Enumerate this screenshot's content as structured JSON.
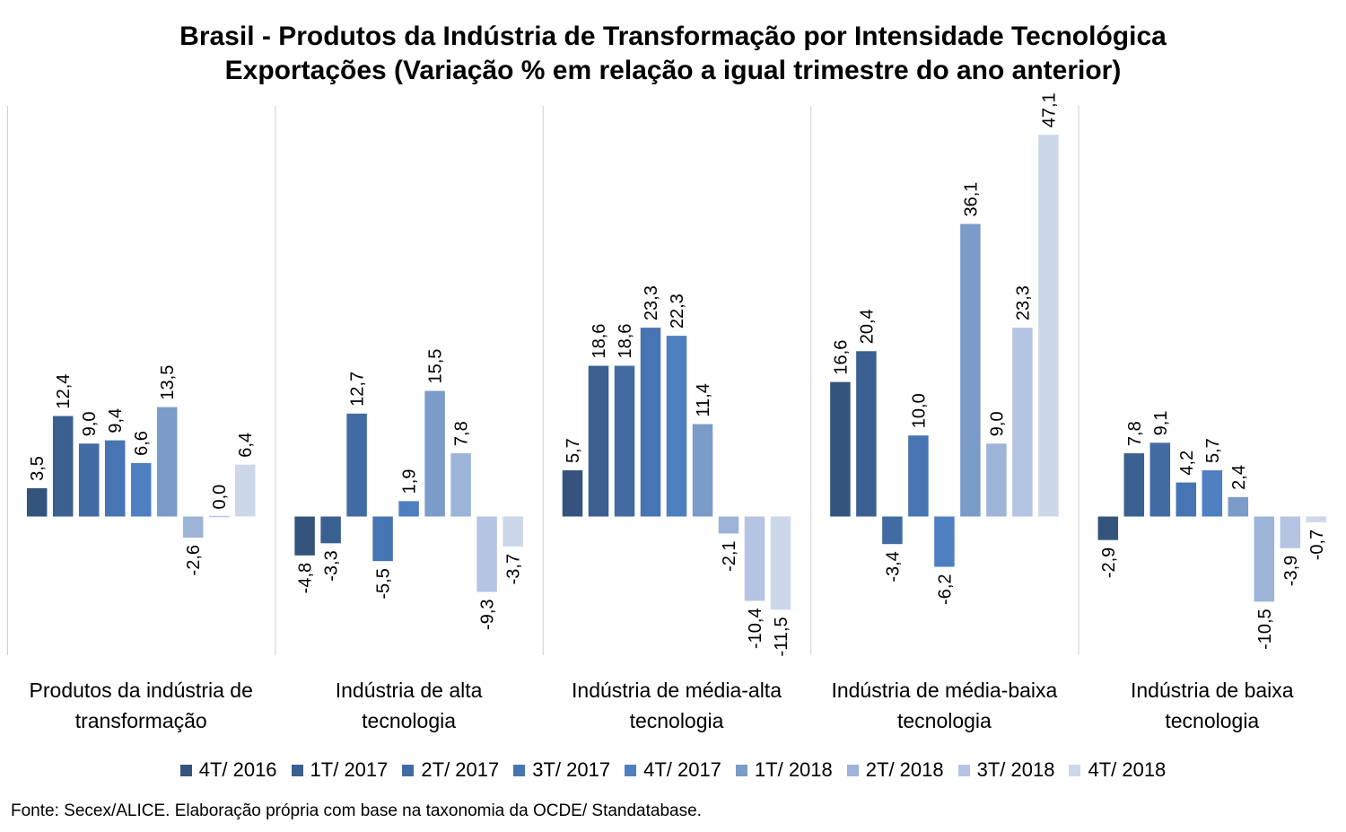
{
  "chart_data": {
    "type": "bar",
    "title": "Brasil - Produtos da Indústria de Transformação por Intensidade Tecnológica",
    "subtitle": "Exportações (Variação % em relação a igual trimestre do ano anterior)",
    "categories": [
      [
        "Produtos da indústria de",
        "transformação"
      ],
      [
        "Indústria de alta",
        "tecnologia"
      ],
      [
        "Indústria de média-alta",
        "tecnologia"
      ],
      [
        "Indústria de média-baixa",
        "tecnologia"
      ],
      [
        "Indústria de baixa",
        "tecnologia"
      ]
    ],
    "series": [
      {
        "name": "4T/ 2016",
        "color": "#34547e",
        "values": [
          3.5,
          -4.8,
          5.7,
          16.6,
          -2.9
        ],
        "labels": [
          "3,5",
          "-4,8",
          "5,7",
          "16,6",
          "-2,9"
        ]
      },
      {
        "name": "1T/ 2017",
        "color": "#3a5f91",
        "values": [
          12.4,
          -3.3,
          18.6,
          20.4,
          7.8
        ],
        "labels": [
          "12,4",
          "-3,3",
          "18,6",
          "20,4",
          "7,8"
        ]
      },
      {
        "name": "2T/ 2017",
        "color": "#426ba3",
        "values": [
          9.0,
          12.7,
          18.6,
          -3.4,
          9.1
        ],
        "labels": [
          "9,0",
          "12,7",
          "18,6",
          "-3,4",
          "9,1"
        ]
      },
      {
        "name": "3T/ 2017",
        "color": "#4774b2",
        "values": [
          9.4,
          -5.5,
          23.3,
          10.0,
          4.2
        ],
        "labels": [
          "9,4",
          "-5,5",
          "23,3",
          "10,0",
          "4,2"
        ]
      },
      {
        "name": "4T/ 2017",
        "color": "#4e7fc1",
        "values": [
          6.6,
          1.9,
          22.3,
          -6.2,
          5.7
        ],
        "labels": [
          "6,6",
          "1,9",
          "22,3",
          "-6,2",
          "5,7"
        ]
      },
      {
        "name": "1T/ 2018",
        "color": "#7b9bc9",
        "values": [
          13.5,
          15.5,
          11.4,
          36.1,
          2.4
        ],
        "labels": [
          "13,5",
          "15,5",
          "11,4",
          "36,1",
          "2,4"
        ]
      },
      {
        "name": "2T/ 2018",
        "color": "#9db3d8",
        "values": [
          -2.6,
          7.8,
          -2.1,
          9.0,
          -10.5
        ],
        "labels": [
          "-2,6",
          "7,8",
          "-2,1",
          "9,0",
          "-10,5"
        ]
      },
      {
        "name": "3T/ 2018",
        "color": "#b5c4e2",
        "values": [
          0.0,
          -9.3,
          -10.4,
          23.3,
          -3.9
        ],
        "labels": [
          "0,0",
          "-9,3",
          "-10,4",
          "23,3",
          "-3,9"
        ]
      },
      {
        "name": "4T/ 2018",
        "color": "#cdd7ea",
        "values": [
          6.4,
          -3.7,
          -11.5,
          47.1,
          -0.7
        ],
        "labels": [
          "6,4",
          "-3,7",
          "-11,5",
          "47,1",
          "-0,7"
        ]
      }
    ],
    "ylim": [
      -17,
      50
    ],
    "grid": false,
    "legend_position": "bottom"
  },
  "source_text": "Fonte: Secex/ALICE. Elaboração própria com base na taxonomia da OCDE/ Standatabase."
}
